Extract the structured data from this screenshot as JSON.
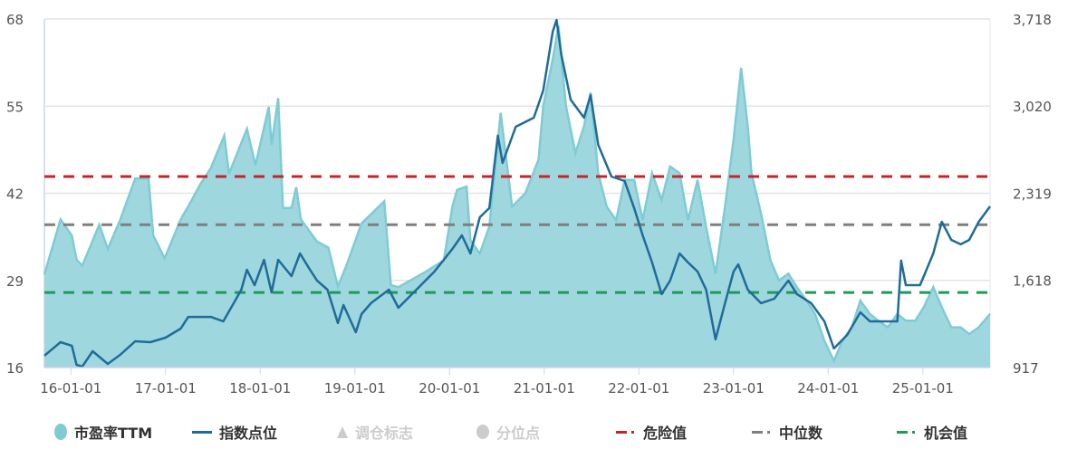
{
  "chart_data": {
    "type": "area",
    "title": "",
    "x_ticks": [
      {
        "label": "16-01-01",
        "x": 2016.0
      },
      {
        "label": "17-01-01",
        "x": 2017.0
      },
      {
        "label": "18-01-01",
        "x": 2018.0
      },
      {
        "label": "19-01-01",
        "x": 2019.0
      },
      {
        "label": "20-01-01",
        "x": 2020.0
      },
      {
        "label": "21-01-01",
        "x": 2021.0
      },
      {
        "label": "22-01-01",
        "x": 2022.0
      },
      {
        "label": "23-01-01",
        "x": 2023.0
      },
      {
        "label": "24-01-01",
        "x": 2024.0
      },
      {
        "label": "25-01-01",
        "x": 2025.0
      }
    ],
    "xlim": [
      2015.72,
      2025.71
    ],
    "left_axis": {
      "ylim": [
        16,
        68
      ],
      "ticks": [
        "16",
        "29",
        "42",
        "55",
        "68"
      ],
      "values": [
        16,
        29,
        42,
        55,
        68
      ]
    },
    "right_axis": {
      "ylim": [
        917,
        3718
      ],
      "ticks": [
        "917",
        "1,618",
        "2,319",
        "3,020",
        "3,718"
      ],
      "values": [
        917,
        1618,
        2319,
        3020,
        3718
      ]
    },
    "colors": {
      "pe_fill": "#9fd7df",
      "pe_line": "#7fcbd4",
      "index": "#1f6c98",
      "danger": "#c0262c",
      "median": "#7f7f7f",
      "opportunity": "#1e9a5a",
      "grid": "#e4e4e4"
    },
    "reference_lines": [
      {
        "name": "危险值",
        "value": 44.5,
        "color": "#c0262c"
      },
      {
        "name": "中位数",
        "value": 37.3,
        "color": "#7f7f7f"
      },
      {
        "name": "机会值",
        "value": 27.2,
        "color": "#1e9a5a"
      }
    ],
    "series": [
      {
        "name": "市盈率TTM",
        "axis": "left",
        "type": "area",
        "points": [
          [
            2015.72,
            29.9
          ],
          [
            2015.89,
            38.1
          ],
          [
            2016.01,
            35.7
          ],
          [
            2016.06,
            32.1
          ],
          [
            2016.12,
            31.2
          ],
          [
            2016.3,
            37.3
          ],
          [
            2016.39,
            33.7
          ],
          [
            2016.52,
            38.0
          ],
          [
            2016.68,
            44.2
          ],
          [
            2016.82,
            44.2
          ],
          [
            2016.87,
            35.7
          ],
          [
            2016.99,
            32.3
          ],
          [
            2017.16,
            38.1
          ],
          [
            2017.23,
            39.8
          ],
          [
            2017.37,
            43.4
          ],
          [
            2017.48,
            45.8
          ],
          [
            2017.62,
            50.6
          ],
          [
            2017.67,
            44.9
          ],
          [
            2017.86,
            51.6
          ],
          [
            2017.95,
            46.2
          ],
          [
            2018.09,
            54.9
          ],
          [
            2018.12,
            49.2
          ],
          [
            2018.19,
            56.2
          ],
          [
            2018.24,
            39.8
          ],
          [
            2018.33,
            39.8
          ],
          [
            2018.38,
            42.9
          ],
          [
            2018.43,
            38.1
          ],
          [
            2018.6,
            34.8
          ],
          [
            2018.72,
            33.9
          ],
          [
            2018.82,
            28.1
          ],
          [
            2018.91,
            31.2
          ],
          [
            2019.07,
            37.5
          ],
          [
            2019.31,
            40.8
          ],
          [
            2019.38,
            28.3
          ],
          [
            2019.46,
            28.0
          ],
          [
            2019.75,
            30.3
          ],
          [
            2019.94,
            32.0
          ],
          [
            2020.03,
            40.0
          ],
          [
            2020.08,
            42.5
          ],
          [
            2020.18,
            43.0
          ],
          [
            2020.22,
            35.0
          ],
          [
            2020.32,
            33.0
          ],
          [
            2020.42,
            37.0
          ],
          [
            2020.54,
            54.0
          ],
          [
            2020.66,
            40.0
          ],
          [
            2020.8,
            42.0
          ],
          [
            2020.94,
            47.0
          ],
          [
            2020.99,
            55.0
          ],
          [
            2021.09,
            62.0
          ],
          [
            2021.15,
            67.0
          ],
          [
            2021.23,
            55.0
          ],
          [
            2021.33,
            48.0
          ],
          [
            2021.42,
            52.0
          ],
          [
            2021.49,
            57.0
          ],
          [
            2021.57,
            45.0
          ],
          [
            2021.66,
            40.0
          ],
          [
            2021.76,
            38.0
          ],
          [
            2021.85,
            44.0
          ],
          [
            2021.95,
            44.0
          ],
          [
            2022.04,
            38.0
          ],
          [
            2022.14,
            45.0
          ],
          [
            2022.24,
            41.0
          ],
          [
            2022.33,
            46.0
          ],
          [
            2022.43,
            45.0
          ],
          [
            2022.52,
            38.0
          ],
          [
            2022.62,
            44.0
          ],
          [
            2022.71,
            37.0
          ],
          [
            2022.81,
            30.0
          ],
          [
            2022.91,
            40.0
          ],
          [
            2023.0,
            50.0
          ],
          [
            2023.08,
            60.7
          ],
          [
            2023.15,
            52.0
          ],
          [
            2023.19,
            45.0
          ],
          [
            2023.29,
            39.0
          ],
          [
            2023.39,
            32.0
          ],
          [
            2023.48,
            29.0
          ],
          [
            2023.58,
            30.0
          ],
          [
            2023.67,
            28.0
          ],
          [
            2023.77,
            26.0
          ],
          [
            2023.86,
            24.0
          ],
          [
            2023.96,
            20.0
          ],
          [
            2024.06,
            17.0
          ],
          [
            2024.15,
            20.0
          ],
          [
            2024.25,
            22.0
          ],
          [
            2024.34,
            26.0
          ],
          [
            2024.44,
            24.0
          ],
          [
            2024.53,
            23.0
          ],
          [
            2024.63,
            22.0
          ],
          [
            2024.73,
            24.0
          ],
          [
            2024.82,
            23.0
          ],
          [
            2024.92,
            23.0
          ],
          [
            2025.01,
            25.0
          ],
          [
            2025.11,
            28.0
          ],
          [
            2025.2,
            25.0
          ],
          [
            2025.3,
            22.0
          ],
          [
            2025.4,
            22.0
          ],
          [
            2025.49,
            21.0
          ],
          [
            2025.59,
            22.0
          ],
          [
            2025.71,
            24.0
          ]
        ]
      },
      {
        "name": "指数点位",
        "axis": "right",
        "type": "line",
        "points": [
          [
            2015.72,
            1012
          ],
          [
            2015.89,
            1121
          ],
          [
            2016.01,
            1092
          ],
          [
            2016.06,
            939
          ],
          [
            2016.12,
            925
          ],
          [
            2016.23,
            1048
          ],
          [
            2016.39,
            946
          ],
          [
            2016.52,
            1019
          ],
          [
            2016.68,
            1128
          ],
          [
            2016.84,
            1121
          ],
          [
            2017.0,
            1157
          ],
          [
            2017.16,
            1230
          ],
          [
            2017.24,
            1324
          ],
          [
            2017.48,
            1324
          ],
          [
            2017.61,
            1288
          ],
          [
            2017.73,
            1448
          ],
          [
            2017.8,
            1543
          ],
          [
            2017.86,
            1703
          ],
          [
            2017.94,
            1579
          ],
          [
            2018.04,
            1783
          ],
          [
            2018.12,
            1521
          ],
          [
            2018.19,
            1783
          ],
          [
            2018.33,
            1652
          ],
          [
            2018.42,
            1834
          ],
          [
            2018.52,
            1710
          ],
          [
            2018.6,
            1616
          ],
          [
            2018.71,
            1543
          ],
          [
            2018.82,
            1274
          ],
          [
            2018.88,
            1419
          ],
          [
            2019.01,
            1201
          ],
          [
            2019.07,
            1346
          ],
          [
            2019.17,
            1434
          ],
          [
            2019.36,
            1543
          ],
          [
            2019.46,
            1397
          ],
          [
            2019.65,
            1543
          ],
          [
            2019.84,
            1688
          ],
          [
            2020.03,
            1870
          ],
          [
            2020.13,
            1979
          ],
          [
            2020.22,
            1834
          ],
          [
            2020.32,
            2125
          ],
          [
            2020.42,
            2198
          ],
          [
            2020.51,
            2780
          ],
          [
            2020.56,
            2561
          ],
          [
            2020.7,
            2852
          ],
          [
            2020.89,
            2925
          ],
          [
            2020.99,
            3143
          ],
          [
            2021.09,
            3616
          ],
          [
            2021.13,
            3711
          ],
          [
            2021.18,
            3434
          ],
          [
            2021.28,
            3070
          ],
          [
            2021.42,
            2925
          ],
          [
            2021.49,
            3107
          ],
          [
            2021.57,
            2707
          ],
          [
            2021.71,
            2452
          ],
          [
            2021.85,
            2416
          ],
          [
            2021.95,
            2198
          ],
          [
            2022.04,
            1979
          ],
          [
            2022.14,
            1761
          ],
          [
            2022.24,
            1507
          ],
          [
            2022.33,
            1616
          ],
          [
            2022.43,
            1834
          ],
          [
            2022.52,
            1761
          ],
          [
            2022.62,
            1688
          ],
          [
            2022.71,
            1543
          ],
          [
            2022.81,
            1143
          ],
          [
            2022.91,
            1434
          ],
          [
            2023.0,
            1688
          ],
          [
            2023.05,
            1746
          ],
          [
            2023.15,
            1543
          ],
          [
            2023.29,
            1434
          ],
          [
            2023.43,
            1470
          ],
          [
            2023.58,
            1616
          ],
          [
            2023.67,
            1507
          ],
          [
            2023.82,
            1434
          ],
          [
            2023.96,
            1288
          ],
          [
            2024.06,
            1070
          ],
          [
            2024.2,
            1179
          ],
          [
            2024.34,
            1361
          ],
          [
            2024.44,
            1288
          ],
          [
            2024.58,
            1288
          ],
          [
            2024.73,
            1288
          ],
          [
            2024.77,
            1776
          ],
          [
            2024.82,
            1579
          ],
          [
            2024.97,
            1579
          ],
          [
            2025.11,
            1834
          ],
          [
            2025.2,
            2088
          ],
          [
            2025.3,
            1943
          ],
          [
            2025.4,
            1907
          ],
          [
            2025.49,
            1943
          ],
          [
            2025.59,
            2088
          ],
          [
            2025.71,
            2212
          ]
        ]
      }
    ],
    "legend": {
      "placement": "bottom",
      "items": [
        {
          "label": "市盈率TTM",
          "symbol": "circle",
          "color": "#7fcbd4",
          "active": true
        },
        {
          "label": "指数点位",
          "symbol": "line",
          "color": "#1f6c98",
          "active": true
        },
        {
          "label": "调仓标志",
          "symbol": "triangle",
          "color": "#cccccc",
          "active": false
        },
        {
          "label": "分位点",
          "symbol": "circle",
          "color": "#cccccc",
          "active": false
        },
        {
          "label": "危险值",
          "symbol": "dash",
          "color": "#c0262c",
          "active": true
        },
        {
          "label": "中位数",
          "symbol": "dash",
          "color": "#7f7f7f",
          "active": true
        },
        {
          "label": "机会值",
          "symbol": "dash",
          "color": "#1e9a5a",
          "active": true
        }
      ]
    }
  }
}
